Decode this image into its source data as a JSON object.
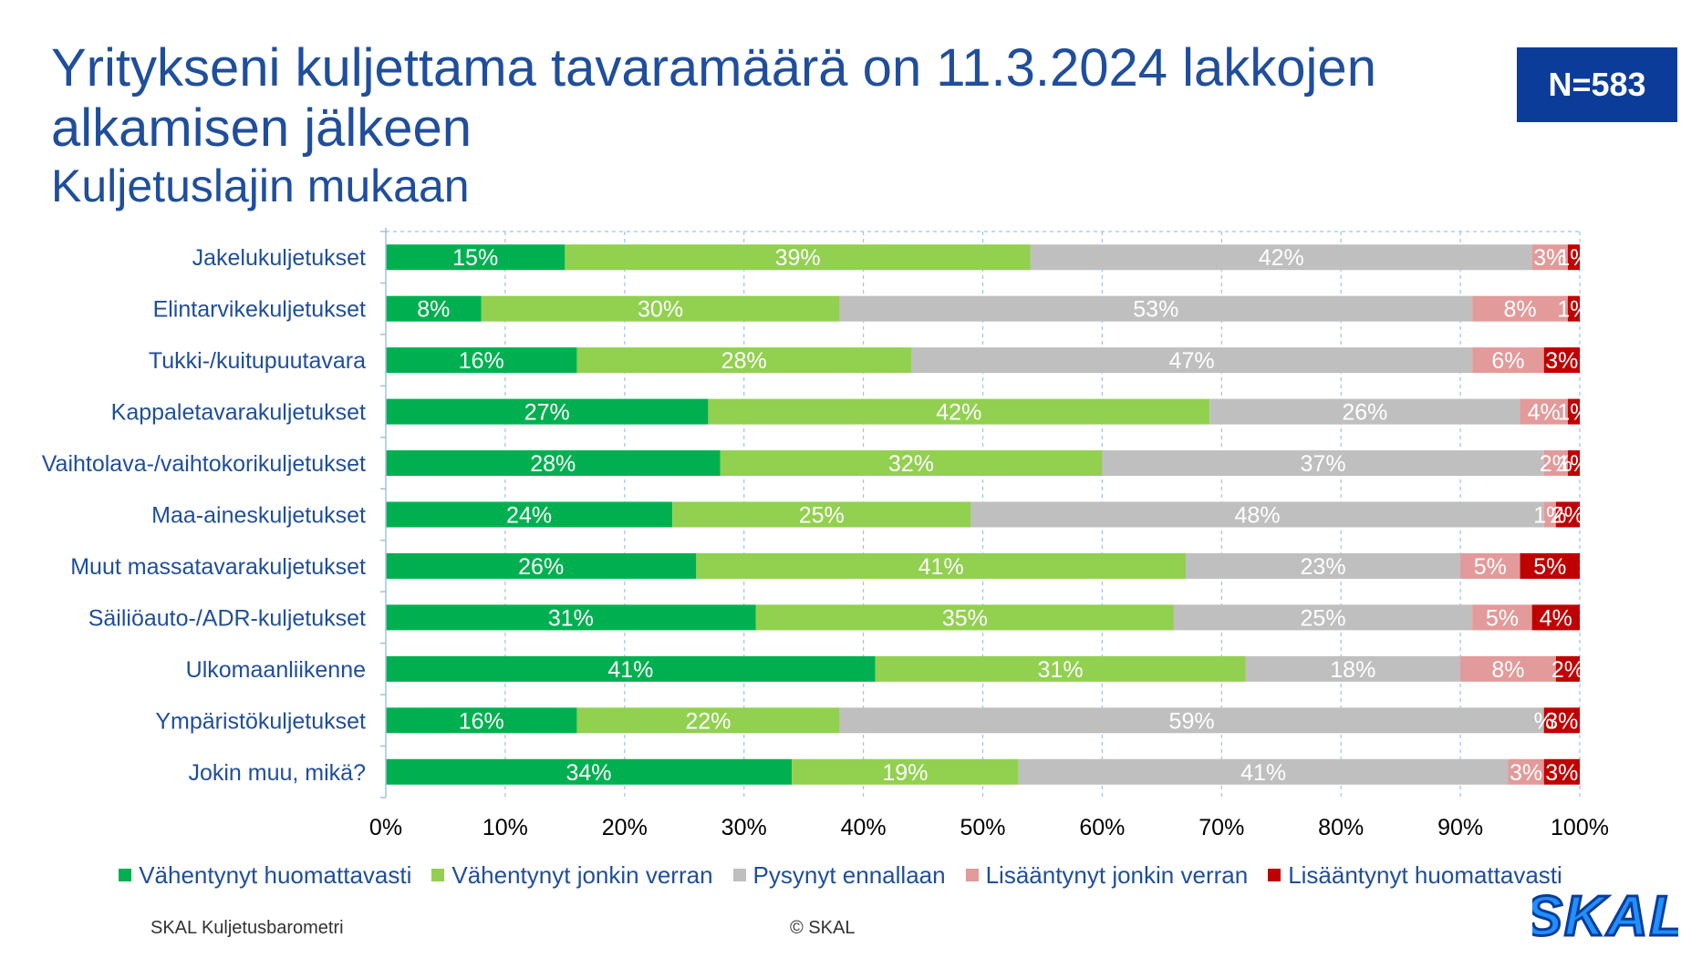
{
  "title": "Yritykseni kuljettama tavaramäärä on 11.3.2024 lakkojen alkamisen jälkeen",
  "subtitle": "Kuljetuslajin mukaan",
  "n_badge": "N=583",
  "footer": {
    "source": "SKAL Kuljetusbarometri",
    "copyright": "© SKAL"
  },
  "logo_text": "SKAL",
  "colors": {
    "brand": "#1f4e9c",
    "badge": "#0b3c9a",
    "series": [
      "#00b050",
      "#92d050",
      "#bfbfbf",
      "#e39a9a",
      "#c00000"
    ]
  },
  "chart_data": {
    "type": "bar",
    "orientation": "horizontal",
    "stacked": "percent",
    "categories": [
      "Jakelukuljetukset",
      "Elintarvikekuljetukset",
      "Tukki-/kuitupuutavara",
      "Kappaletavarakuljetukset",
      "Vaihtolava-/vaihtokorikuljetukset",
      "Maa-aineskuljetukset",
      "Muut massatavarakuljetukset",
      "Säiliöauto-/ADR-kuljetukset",
      "Ulkomaanliikenne",
      "Ympäristökuljetukset",
      "Jokin muu, mikä?"
    ],
    "series": [
      {
        "name": "Vähentynyt huomattavasti",
        "values": [
          15,
          8,
          16,
          27,
          28,
          24,
          26,
          31,
          41,
          16,
          34
        ]
      },
      {
        "name": "Vähentynyt jonkin verran",
        "values": [
          39,
          30,
          28,
          42,
          32,
          25,
          41,
          35,
          31,
          22,
          19
        ]
      },
      {
        "name": "Pysynyt ennallaan",
        "values": [
          42,
          53,
          47,
          26,
          37,
          48,
          23,
          25,
          18,
          59,
          41
        ]
      },
      {
        "name": "Lisääntynyt jonkin verran",
        "values": [
          3,
          8,
          6,
          4,
          2,
          1,
          5,
          5,
          8,
          0,
          3
        ]
      },
      {
        "name": "Lisääntynyt huomattavasti",
        "values": [
          1,
          1,
          3,
          1,
          1,
          2,
          5,
          4,
          2,
          3,
          3
        ]
      }
    ],
    "data_labels": [
      [
        "15%",
        "39%",
        "42%",
        "3%",
        "1%"
      ],
      [
        "8%",
        "30%",
        "53%",
        "8%",
        "1%"
      ],
      [
        "16%",
        "28%",
        "47%",
        "6%",
        "3%"
      ],
      [
        "27%",
        "42%",
        "26%",
        "4%",
        "1%"
      ],
      [
        "28%",
        "32%",
        "37%",
        "2%",
        "1%"
      ],
      [
        "24%",
        "25%",
        "48%",
        "1%",
        "2%"
      ],
      [
        "26%",
        "41%",
        "23%",
        "5%",
        "5%"
      ],
      [
        "31%",
        "35%",
        "25%",
        "5%",
        "4%"
      ],
      [
        "41%",
        "31%",
        "18%",
        "8%",
        "2%"
      ],
      [
        "16%",
        "22%",
        "59%",
        "%",
        "3%"
      ],
      [
        "34%",
        "19%",
        "41%",
        "3%",
        "3%"
      ]
    ],
    "x_ticks": [
      "0%",
      "10%",
      "20%",
      "30%",
      "40%",
      "50%",
      "60%",
      "70%",
      "80%",
      "90%",
      "100%"
    ],
    "xlim": [
      0,
      100
    ],
    "grid": true,
    "legend_position": "bottom"
  }
}
